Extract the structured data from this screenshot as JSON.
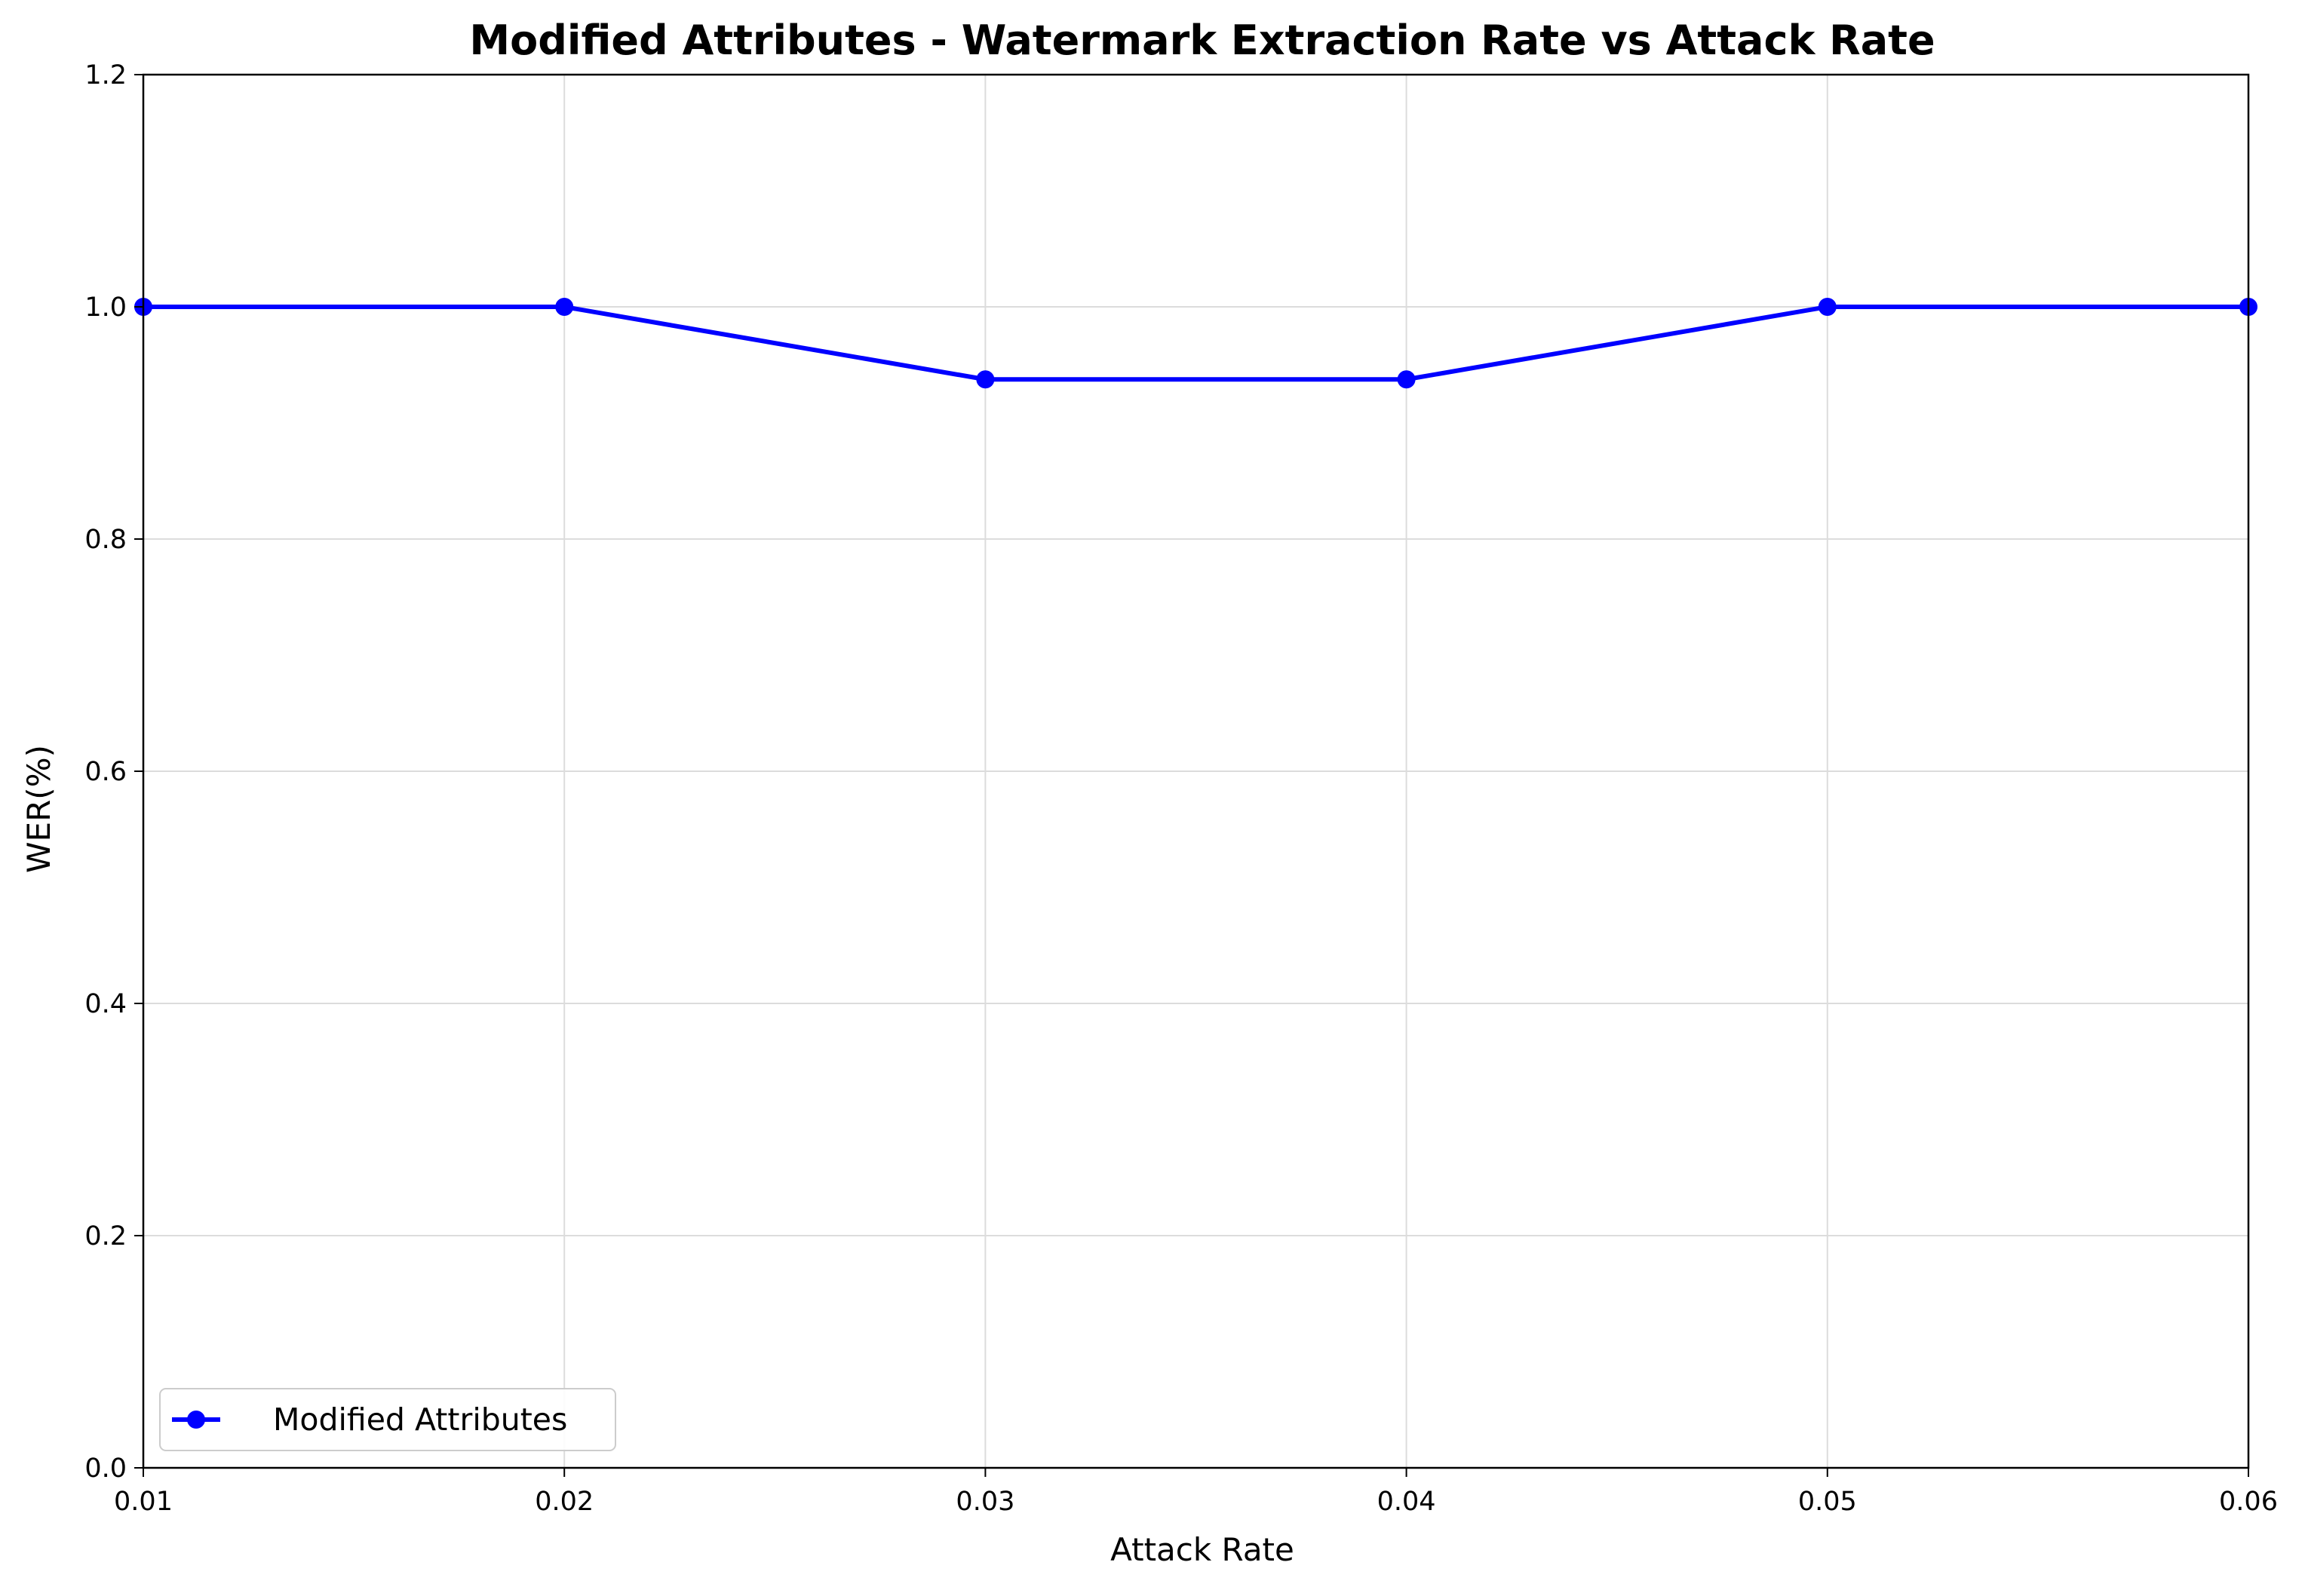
{
  "chart_data": {
    "type": "line",
    "title": "Modified Attributes - Watermark Extraction Rate vs Attack Rate",
    "xlabel": "Attack Rate",
    "ylabel": "WER(%)",
    "xlim": [
      0.01,
      0.06
    ],
    "ylim": [
      0.0,
      1.2
    ],
    "x_ticks": [
      "0.01",
      "0.02",
      "0.03",
      "0.04",
      "0.05",
      "0.06"
    ],
    "y_ticks": [
      "0.0",
      "0.2",
      "0.4",
      "0.6",
      "0.8",
      "1.0",
      "1.2"
    ],
    "grid": true,
    "legend_position": "lower-left",
    "series": [
      {
        "name": "Modified Attributes",
        "color": "#0000ff",
        "marker": "circle",
        "x": [
          0.01,
          0.02,
          0.03,
          0.04,
          0.05,
          0.06
        ],
        "y": [
          1.0,
          1.0,
          0.9375,
          0.9375,
          1.0,
          1.0
        ]
      }
    ]
  }
}
